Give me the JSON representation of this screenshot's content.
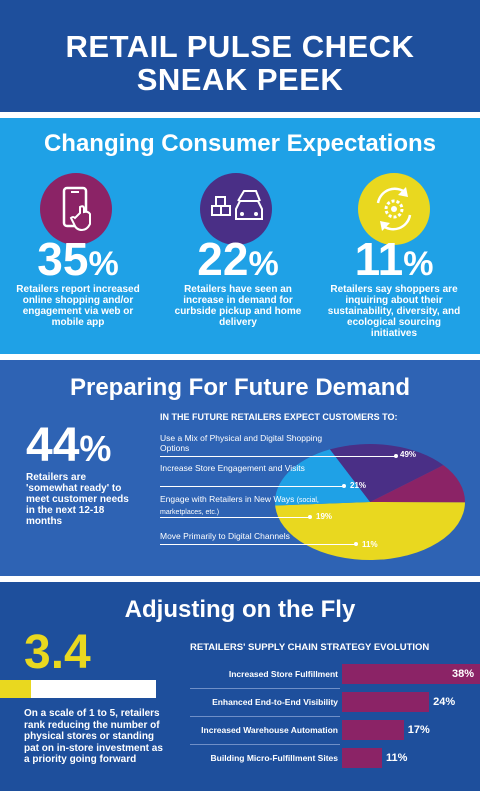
{
  "header": {
    "line1": "RETAIL PULSE CHECK",
    "line2": "SNEAK PEEK"
  },
  "expectations": {
    "title": "Changing Consumer Expectations",
    "items": [
      {
        "value": "35",
        "unit": "%",
        "text": "Retailers report increased online shopping and/or engagement via web or mobile app",
        "icon": "mobile-phone-icon",
        "color": "#8b2366"
      },
      {
        "value": "22",
        "unit": "%",
        "text": "Retailers have seen an increase in demand for curbside pickup and home delivery",
        "icon": "curbside-car-icon",
        "color": "#4a2f86"
      },
      {
        "value": "11",
        "unit": "%",
        "text": "Retailers say shoppers are inquiring about their sustainability, diversity, and ecological sourcing initiatives",
        "icon": "recycle-gear-icon",
        "color": "#e9d81f"
      }
    ]
  },
  "future": {
    "title": "Preparing For Future Demand",
    "stat": {
      "value": "44",
      "unit": "%",
      "text": "Retailers are 'somewhat ready' to meet customer needs in the next 12-18 months"
    },
    "chart_heading": "IN THE FUTURE RETAILERS EXPECT CUSTOMERS TO:",
    "labels": [
      "Use a Mix of Physical and Digital Shopping Options",
      "Increase Store Engagement and Visits",
      "Engage with Retailers in New Ways",
      "(social, marketplaces, etc.)",
      "Move Primarily to Digital Channels"
    ],
    "pcts": [
      "49%",
      "21%",
      "19%",
      "11%"
    ]
  },
  "chart_data": [
    {
      "type": "pie",
      "title": "IN THE FUTURE RETAILERS EXPECT CUSTOMERS TO:",
      "categories": [
        "Use a Mix of Physical and Digital Shopping Options",
        "Increase Store Engagement and Visits",
        "Engage with Retailers in New Ways (social, marketplaces, etc.)",
        "Move Primarily to Digital Channels"
      ],
      "values": [
        49,
        21,
        19,
        11
      ],
      "colors": [
        "#e9d81f",
        "#4a2f86",
        "#1fa1e6",
        "#8b2366"
      ]
    },
    {
      "type": "bar",
      "title": "RETAILERS' SUPPLY CHAIN STRATEGY EVOLUTION",
      "categories": [
        "Increased Store Fulfillment",
        "Enhanced End-to-End Visibility",
        "Increased Warehouse Automation",
        "Building Micro-Fulfillment Sites"
      ],
      "values": [
        38,
        24,
        17,
        11
      ],
      "value_labels": [
        "38%",
        "24%",
        "17%",
        "11%"
      ],
      "color": "#8b2366"
    }
  ],
  "fly": {
    "title": "Adjusting on the Fly",
    "score": "3.4",
    "score_fraction": 0.2,
    "text": "On a scale of 1 to 5, retailers rank reducing the number of physical stores or standing pat on in-store investment as a priority going forward",
    "bars_heading": "RETAILERS' SUPPLY CHAIN STRATEGY EVOLUTION"
  }
}
